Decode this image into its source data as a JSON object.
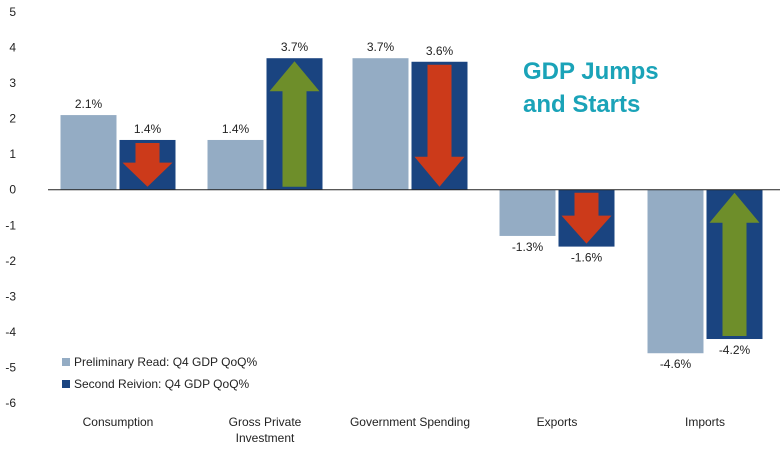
{
  "chart_data": {
    "type": "bar",
    "title_lines": [
      "GDP Jumps",
      "and Starts"
    ],
    "categories": [
      [
        "Consumption"
      ],
      [
        "Gross Private",
        "Investment"
      ],
      [
        "Government Spending"
      ],
      [
        "Exports"
      ],
      [
        "Imports"
      ]
    ],
    "series": [
      {
        "name": "Preliminary Read: Q4 GDP QoQ%",
        "color": "#94acc4",
        "values": [
          2.1,
          1.4,
          3.7,
          -1.3,
          -4.6
        ],
        "labels": [
          "2.1%",
          "1.4%",
          "3.7%",
          "-1.3%",
          "-4.6%"
        ]
      },
      {
        "name": "Second Reivion: Q4 GDP QoQ%",
        "color": "#1a4480",
        "values": [
          1.4,
          3.7,
          3.6,
          -1.6,
          -4.2
        ],
        "labels": [
          "1.4%",
          "3.7%",
          "3.6%",
          "-1.6%",
          "-4.2%"
        ]
      }
    ],
    "arrows": [
      {
        "category": 0,
        "direction": "down",
        "color": "#cc3a1a"
      },
      {
        "category": 1,
        "direction": "up",
        "color": "#6e8e2a"
      },
      {
        "category": 2,
        "direction": "down",
        "color": "#cc3a1a"
      },
      {
        "category": 3,
        "direction": "down",
        "color": "#cc3a1a"
      },
      {
        "category": 4,
        "direction": "up",
        "color": "#6e8e2a"
      }
    ],
    "yticks": [
      5,
      4,
      3,
      2,
      1,
      0,
      -1,
      -2,
      -3,
      -4,
      -5,
      -6
    ],
    "ylim": [
      -6,
      5
    ],
    "grid": false,
    "legend_position": "bottom-left",
    "title_color": "#1aa3b8"
  }
}
